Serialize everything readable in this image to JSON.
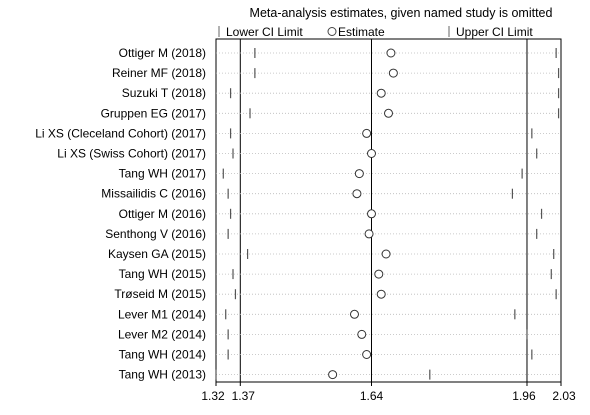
{
  "chart_data": {
    "type": "forest",
    "title": "Meta-analysis estimates, given named study is omitted",
    "legend": {
      "lower": "Lower CI Limit",
      "estimate": "Estimate",
      "upper": "Upper CI Limit"
    },
    "xlim": [
      1.32,
      2.03
    ],
    "xticks": [
      1.32,
      1.37,
      1.64,
      1.96,
      2.03
    ],
    "xtick_labels": [
      "1.32",
      "1.37",
      "1.64",
      "1.96",
      "2.03"
    ],
    "vlines": [
      1.37,
      1.64,
      1.96
    ],
    "studies": [
      {
        "label": "Ottiger M  (2018)",
        "lower": 1.4,
        "estimate": 1.68,
        "upper": 2.02
      },
      {
        "label": "Reiner MF  (2018)",
        "lower": 1.4,
        "estimate": 1.685,
        "upper": 2.025
      },
      {
        "label": "Suzuki T  (2018)",
        "lower": 1.35,
        "estimate": 1.66,
        "upper": 2.025
      },
      {
        "label": "Gruppen EG  (2017)",
        "lower": 1.39,
        "estimate": 1.675,
        "upper": 2.025
      },
      {
        "label": "Li XS (Cleceland Cohort)  (2017)",
        "lower": 1.35,
        "estimate": 1.63,
        "upper": 1.97
      },
      {
        "label": "Li XS (Swiss Cohort)  (2017)",
        "lower": 1.355,
        "estimate": 1.64,
        "upper": 1.98
      },
      {
        "label": "Tang WH  (2017)",
        "lower": 1.335,
        "estimate": 1.615,
        "upper": 1.95
      },
      {
        "label": "Missailidis C  (2016)",
        "lower": 1.345,
        "estimate": 1.61,
        "upper": 1.93
      },
      {
        "label": "Ottiger M  (2016)",
        "lower": 1.35,
        "estimate": 1.64,
        "upper": 1.99
      },
      {
        "label": "Senthong V  (2016)",
        "lower": 1.345,
        "estimate": 1.635,
        "upper": 1.98
      },
      {
        "label": "Kaysen GA  (2015)",
        "lower": 1.385,
        "estimate": 1.67,
        "upper": 2.015
      },
      {
        "label": "Tang WH  (2015)",
        "lower": 1.355,
        "estimate": 1.655,
        "upper": 2.01
      },
      {
        "label": "Trøseid M  (2015)",
        "lower": 1.36,
        "estimate": 1.66,
        "upper": 2.02
      },
      {
        "label": "Lever M1  (2014)",
        "lower": 1.34,
        "estimate": 1.605,
        "upper": 1.935
      },
      {
        "label": "Lever M2  (2014)",
        "lower": 1.345,
        "estimate": 1.62,
        "upper": 1.96
      },
      {
        "label": "Tang WH  (2014)",
        "lower": 1.345,
        "estimate": 1.63,
        "upper": 1.97
      },
      {
        "label": "Tang WH  (2013)",
        "lower": 1.32,
        "estimate": 1.56,
        "upper": 1.76
      }
    ]
  }
}
